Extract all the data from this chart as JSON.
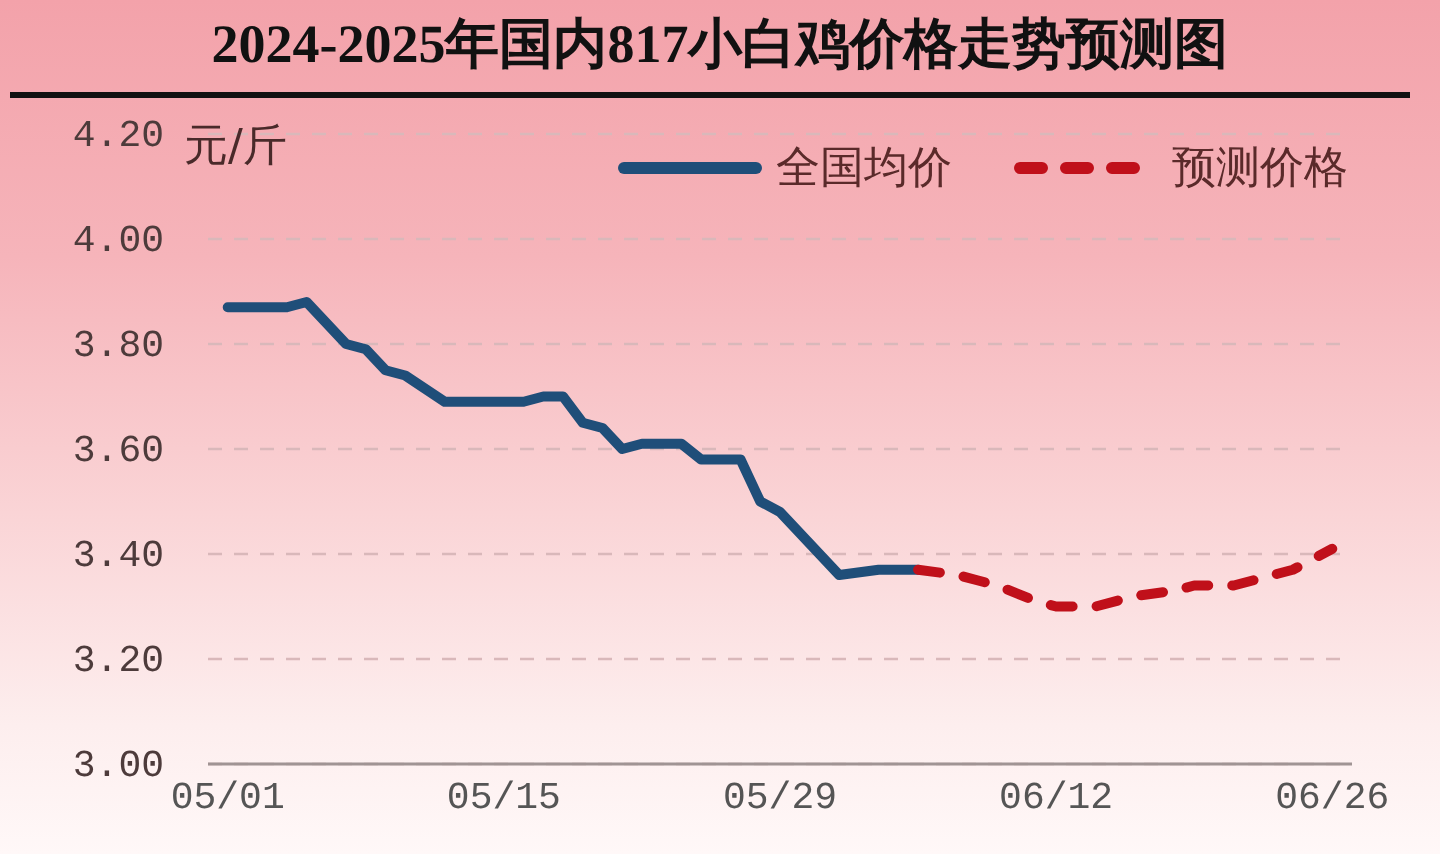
{
  "chart_data": {
    "type": "line",
    "title": "2024-2025年国内817小白鸡价格走势预测图",
    "ylabel": "元/斤",
    "xlim": [
      "--04-30",
      "--06-27"
    ],
    "xticks": [
      {
        "value": "--05-01",
        "label": "05/01"
      },
      {
        "value": "--05-15",
        "label": "05/15"
      },
      {
        "value": "--05-29",
        "label": "05/29"
      },
      {
        "value": "--06-12",
        "label": "06/12"
      },
      {
        "value": "--06-26",
        "label": "06/26"
      }
    ],
    "ylim": [
      3.0,
      4.2
    ],
    "yticks": [
      {
        "value": 3.0,
        "label": "3.00"
      },
      {
        "value": 3.2,
        "label": "3.20"
      },
      {
        "value": 3.4,
        "label": "3.40"
      },
      {
        "value": 3.6,
        "label": "3.60"
      },
      {
        "value": 3.8,
        "label": "3.80"
      },
      {
        "value": 4.0,
        "label": "4.00"
      },
      {
        "value": 4.2,
        "label": "4.20"
      }
    ],
    "grid": "y",
    "legend": "top right",
    "series": [
      {
        "name": "全国均价",
        "color": "#1f4e79",
        "line_style": "solid",
        "x": [
          "--05-01",
          "--05-04",
          "--05-05",
          "--05-07",
          "--05-08",
          "--05-09",
          "--05-10",
          "--05-12",
          "--05-16",
          "--05-17",
          "--05-18",
          "--05-19",
          "--05-20",
          "--05-21",
          "--05-22",
          "--05-24",
          "--05-25",
          "--05-27",
          "--05-28",
          "--05-29",
          "--05-31",
          "--06-01",
          "--06-03",
          "--06-05"
        ],
        "values": [
          3.87,
          3.87,
          3.88,
          3.8,
          3.79,
          3.75,
          3.74,
          3.69,
          3.69,
          3.7,
          3.7,
          3.65,
          3.64,
          3.6,
          3.61,
          3.61,
          3.58,
          3.58,
          3.5,
          3.48,
          3.4,
          3.36,
          3.37,
          3.37
        ]
      },
      {
        "name": "预测价格",
        "color": "#c0101a",
        "line_style": "dashed",
        "x": [
          "--06-05",
          "--06-07",
          "--06-08",
          "--06-09",
          "--06-11",
          "--06-12",
          "--06-14",
          "--06-16",
          "--06-18",
          "--06-19",
          "--06-21",
          "--06-24",
          "--06-25",
          "--06-26"
        ],
        "values": [
          3.37,
          3.36,
          3.35,
          3.34,
          3.31,
          3.3,
          3.3,
          3.32,
          3.33,
          3.34,
          3.34,
          3.37,
          3.39,
          3.41
        ]
      }
    ]
  }
}
